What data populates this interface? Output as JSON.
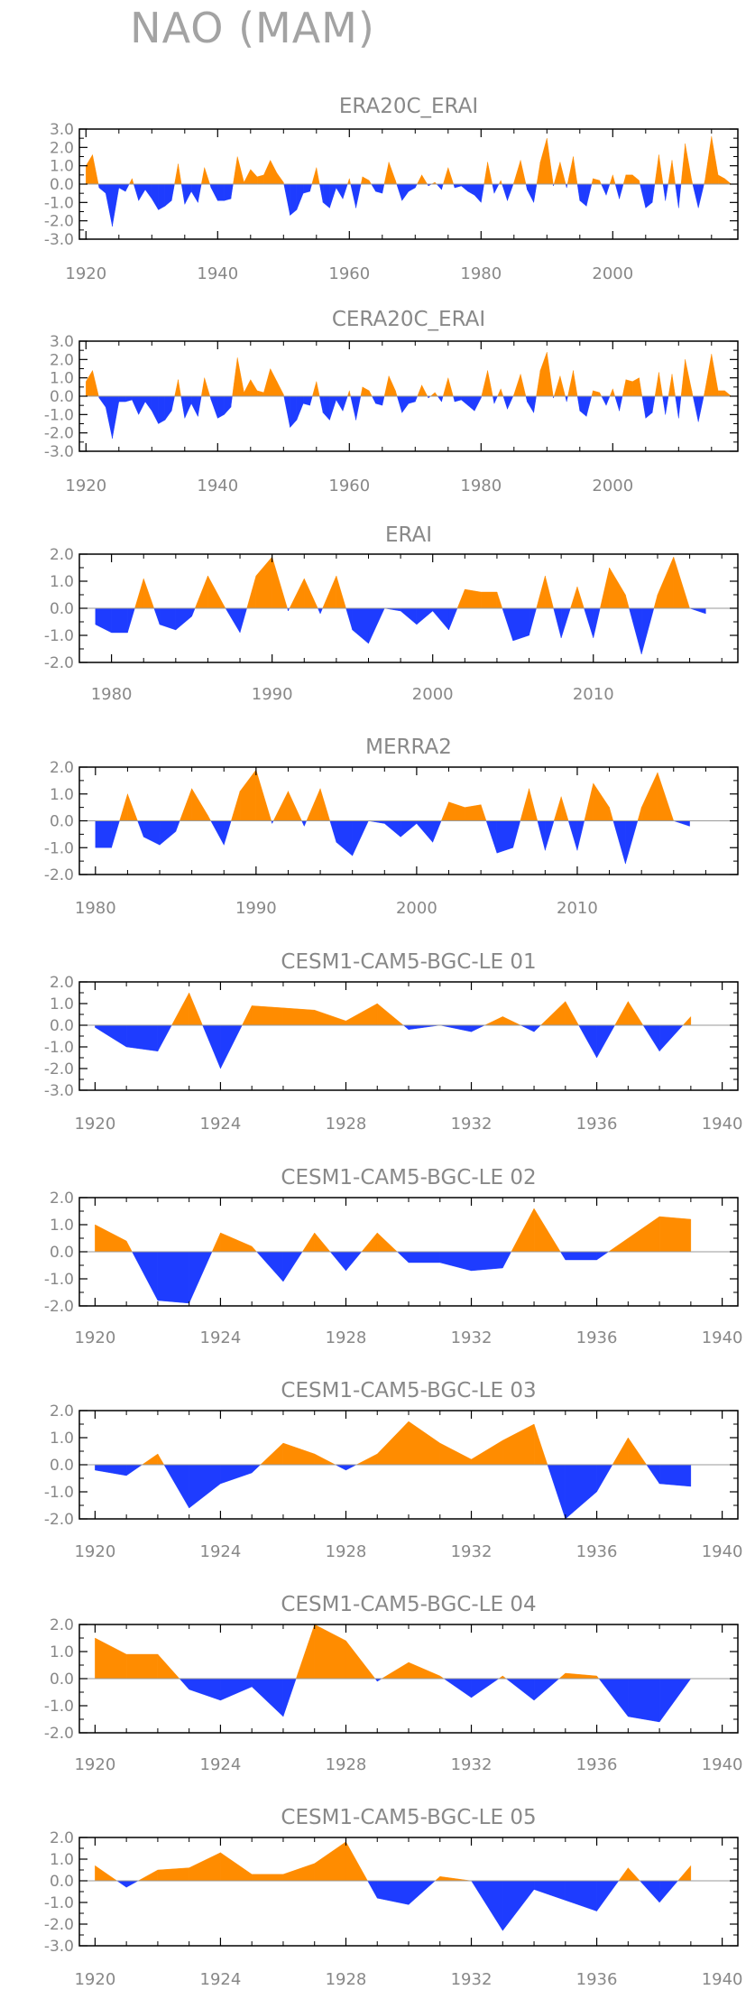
{
  "page_title": "NAO (MAM)",
  "colors": {
    "positive": "#ff8c00",
    "negative": "#1e3cff",
    "axis": "#000000",
    "label": "#888888"
  },
  "chart_data": [
    {
      "type": "area",
      "title": "ERA20C_ERAI",
      "xlim": [
        1919,
        2019
      ],
      "ylim": [
        -3,
        3
      ],
      "yticks": [
        3.0,
        2.0,
        1.0,
        0.0,
        -1.0,
        -2.0,
        -3.0
      ],
      "ytick_labels": [
        "3.0",
        "2.0",
        "1.0",
        "0.0",
        "-1.0",
        "-2.0",
        "-3.0"
      ],
      "xticks": [
        1920,
        1940,
        1960,
        1980,
        2000
      ],
      "xtick_labels": [
        "1920",
        "1940",
        "1960",
        "1980",
        "2000"
      ],
      "x": [
        1920,
        1921,
        1922,
        1923,
        1924,
        1925,
        1926,
        1927,
        1928,
        1929,
        1930,
        1931,
        1932,
        1933,
        1934,
        1935,
        1936,
        1937,
        1938,
        1939,
        1940,
        1941,
        1942,
        1943,
        1944,
        1945,
        1946,
        1947,
        1948,
        1949,
        1950,
        1951,
        1952,
        1953,
        1954,
        1955,
        1956,
        1957,
        1958,
        1959,
        1960,
        1961,
        1962,
        1963,
        1964,
        1965,
        1966,
        1967,
        1968,
        1969,
        1970,
        1971,
        1972,
        1973,
        1974,
        1975,
        1976,
        1977,
        1978,
        1979,
        1980,
        1981,
        1982,
        1983,
        1984,
        1985,
        1986,
        1987,
        1988,
        1989,
        1990,
        1991,
        1992,
        1993,
        1994,
        1995,
        1996,
        1997,
        1998,
        1999,
        2000,
        2001,
        2002,
        2003,
        2004,
        2005,
        2006,
        2007,
        2008,
        2009,
        2010,
        2011,
        2012,
        2013,
        2014,
        2015,
        2016,
        2017,
        2018
      ],
      "values": [
        1.0,
        1.6,
        -0.2,
        -0.5,
        -2.3,
        -0.2,
        -0.4,
        0.3,
        -0.9,
        -0.3,
        -0.8,
        -1.4,
        -1.2,
        -0.9,
        1.1,
        -1.1,
        -0.4,
        -1.0,
        0.9,
        -0.2,
        -0.9,
        -0.9,
        -0.8,
        1.5,
        0.1,
        0.8,
        0.4,
        0.5,
        1.3,
        0.6,
        0.1,
        -1.7,
        -1.4,
        -0.5,
        -0.4,
        0.9,
        -1.0,
        -1.3,
        -0.2,
        -0.8,
        0.3,
        -1.3,
        0.4,
        0.2,
        -0.4,
        -0.5,
        1.2,
        0.2,
        -0.9,
        -0.4,
        -0.2,
        0.5,
        -0.1,
        0.1,
        -0.3,
        0.9,
        -0.2,
        -0.1,
        -0.4,
        -0.6,
        -1.0,
        1.2,
        -0.5,
        0.2,
        -0.9,
        0.1,
        1.3,
        -0.3,
        -1.0,
        1.2,
        2.5,
        -0.1,
        1.2,
        -0.2,
        1.5,
        -0.9,
        -1.2,
        0.3,
        0.2,
        -0.6,
        0.5,
        -0.8,
        0.5,
        0.5,
        0.2,
        -1.3,
        -1.0,
        1.6,
        -0.9,
        1.3,
        -1.3,
        2.2,
        0.2,
        -1.3,
        0.2,
        2.6,
        0.5,
        0.3,
        0.0
      ]
    },
    {
      "type": "area",
      "title": "CERA20C_ERAI",
      "xlim": [
        1919,
        2019
      ],
      "ylim": [
        -3,
        3
      ],
      "yticks": [
        3.0,
        2.0,
        1.0,
        0.0,
        -1.0,
        -2.0,
        -3.0
      ],
      "ytick_labels": [
        "3.0",
        "2.0",
        "1.0",
        "0.0",
        "-1.0",
        "-2.0",
        "-3.0"
      ],
      "xticks": [
        1920,
        1940,
        1960,
        1980,
        2000
      ],
      "xtick_labels": [
        "1920",
        "1940",
        "1960",
        "1980",
        "2000"
      ],
      "x": [
        1920,
        1921,
        1922,
        1923,
        1924,
        1925,
        1926,
        1927,
        1928,
        1929,
        1930,
        1931,
        1932,
        1933,
        1934,
        1935,
        1936,
        1937,
        1938,
        1939,
        1940,
        1941,
        1942,
        1943,
        1944,
        1945,
        1946,
        1947,
        1948,
        1949,
        1950,
        1951,
        1952,
        1953,
        1954,
        1955,
        1956,
        1957,
        1958,
        1959,
        1960,
        1961,
        1962,
        1963,
        1964,
        1965,
        1966,
        1967,
        1968,
        1969,
        1970,
        1971,
        1972,
        1973,
        1974,
        1975,
        1976,
        1977,
        1978,
        1979,
        1980,
        1981,
        1982,
        1983,
        1984,
        1985,
        1986,
        1987,
        1988,
        1989,
        1990,
        1991,
        1992,
        1993,
        1994,
        1995,
        1996,
        1997,
        1998,
        1999,
        2000,
        2001,
        2002,
        2003,
        2004,
        2005,
        2006,
        2007,
        2008,
        2009,
        2010,
        2011,
        2012,
        2013,
        2014,
        2015,
        2016,
        2017,
        2018
      ],
      "values": [
        0.8,
        1.4,
        -0.1,
        -0.6,
        -2.3,
        -0.3,
        -0.3,
        -0.2,
        -1.0,
        -0.3,
        -0.8,
        -1.5,
        -1.3,
        -0.8,
        0.9,
        -1.2,
        -0.4,
        -1.1,
        1.0,
        -0.2,
        -1.2,
        -1.0,
        -0.6,
        2.1,
        0.2,
        0.9,
        0.3,
        0.2,
        1.5,
        0.8,
        0.1,
        -1.7,
        -1.3,
        -0.4,
        -0.5,
        0.8,
        -0.9,
        -1.3,
        -0.2,
        -0.8,
        0.3,
        -1.3,
        0.5,
        0.3,
        -0.4,
        -0.5,
        1.1,
        0.3,
        -0.9,
        -0.4,
        -0.3,
        0.6,
        -0.1,
        0.2,
        -0.3,
        1.0,
        -0.3,
        -0.2,
        -0.5,
        -0.8,
        -0.1,
        1.4,
        -0.4,
        0.4,
        -0.7,
        0.1,
        1.2,
        -0.3,
        -0.9,
        1.4,
        2.4,
        -0.1,
        1.1,
        -0.3,
        1.4,
        -0.8,
        -1.1,
        0.3,
        0.2,
        -0.5,
        0.4,
        -0.8,
        0.9,
        0.8,
        1.0,
        -1.2,
        -0.9,
        1.3,
        -1.0,
        1.2,
        -1.2,
        2.0,
        0.3,
        -1.4,
        0.3,
        2.3,
        0.3,
        0.3,
        0.0
      ]
    },
    {
      "type": "area",
      "title": "ERAI",
      "xlim": [
        1978,
        2019
      ],
      "ylim": [
        -2,
        2
      ],
      "yticks": [
        2.0,
        1.0,
        0.0,
        -1.0,
        -2.0
      ],
      "ytick_labels": [
        "2.0",
        "1.0",
        "0.0",
        "-1.0",
        "-2.0"
      ],
      "xticks": [
        1980,
        1990,
        2000,
        2010
      ],
      "xtick_labels": [
        "1980",
        "1990",
        "2000",
        "2010"
      ],
      "x": [
        1979,
        1980,
        1981,
        1982,
        1983,
        1984,
        1985,
        1986,
        1987,
        1988,
        1989,
        1990,
        1991,
        1992,
        1993,
        1994,
        1995,
        1996,
        1997,
        1998,
        1999,
        2000,
        2001,
        2002,
        2003,
        2004,
        2005,
        2006,
        2007,
        2008,
        2009,
        2010,
        2011,
        2012,
        2013,
        2014,
        2015,
        2016,
        2017
      ],
      "values": [
        -0.6,
        -0.9,
        -0.9,
        1.1,
        -0.6,
        -0.8,
        -0.3,
        1.2,
        0.1,
        -0.9,
        1.2,
        1.9,
        -0.1,
        1.1,
        -0.2,
        1.2,
        -0.8,
        -1.3,
        -0.0,
        -0.1,
        -0.6,
        -0.1,
        -0.8,
        0.7,
        0.6,
        0.6,
        -1.2,
        -1.0,
        1.2,
        -1.1,
        0.8,
        -1.1,
        1.5,
        0.5,
        -1.7,
        0.5,
        1.9,
        0.0,
        -0.2
      ]
    },
    {
      "type": "area",
      "title": "MERRA2",
      "xlim": [
        1979,
        2020
      ],
      "ylim": [
        -2,
        2
      ],
      "yticks": [
        2.0,
        1.0,
        0.0,
        -1.0,
        -2.0
      ],
      "ytick_labels": [
        "2.0",
        "1.0",
        "0.0",
        "-1.0",
        "-2.0"
      ],
      "xticks": [
        1980,
        1990,
        2000,
        2010
      ],
      "xtick_labels": [
        "1980",
        "1990",
        "2000",
        "2010"
      ],
      "x": [
        1980,
        1981,
        1982,
        1983,
        1984,
        1985,
        1986,
        1987,
        1988,
        1989,
        1990,
        1991,
        1992,
        1993,
        1994,
        1995,
        1996,
        1997,
        1998,
        1999,
        2000,
        2001,
        2002,
        2003,
        2004,
        2005,
        2006,
        2007,
        2008,
        2009,
        2010,
        2011,
        2012,
        2013,
        2014,
        2015,
        2016,
        2017
      ],
      "values": [
        -1.0,
        -1.0,
        1.0,
        -0.6,
        -0.9,
        -0.4,
        1.2,
        0.2,
        -0.9,
        1.1,
        1.9,
        -0.1,
        1.1,
        -0.2,
        1.2,
        -0.8,
        -1.3,
        -0.0,
        -0.1,
        -0.6,
        -0.1,
        -0.8,
        0.7,
        0.5,
        0.6,
        -1.2,
        -1.0,
        1.2,
        -1.1,
        0.9,
        -1.1,
        1.4,
        0.5,
        -1.6,
        0.5,
        1.8,
        0.0,
        -0.2
      ]
    },
    {
      "type": "area",
      "title": "CESM1-CAM5-BGC-LE 01",
      "xlim": [
        1919.5,
        1940.5
      ],
      "ylim": [
        -3,
        2
      ],
      "yticks": [
        2.0,
        1.0,
        0.0,
        -1.0,
        -2.0,
        -3.0
      ],
      "ytick_labels": [
        "2.0",
        "1.0",
        "0.0",
        "-1.0",
        "-2.0",
        "-3.0"
      ],
      "xticks": [
        1920,
        1924,
        1928,
        1932,
        1936,
        1940
      ],
      "xtick_labels": [
        "1920",
        "1924",
        "1928",
        "1932",
        "1936",
        "1940"
      ],
      "x": [
        1920,
        1921,
        1922,
        1923,
        1924,
        1925,
        1926,
        1927,
        1928,
        1929,
        1930,
        1931,
        1932,
        1933,
        1934,
        1935,
        1936,
        1937,
        1938,
        1939
      ],
      "values": [
        -0.1,
        -1.0,
        -1.2,
        1.5,
        -2.0,
        0.9,
        0.8,
        0.7,
        0.2,
        1.0,
        -0.2,
        0.0,
        -0.3,
        0.4,
        -0.3,
        1.1,
        -1.5,
        1.1,
        -1.2,
        0.4
      ]
    },
    {
      "type": "area",
      "title": "CESM1-CAM5-BGC-LE 02",
      "xlim": [
        1919.5,
        1940.5
      ],
      "ylim": [
        -2,
        2
      ],
      "yticks": [
        2.0,
        1.0,
        0.0,
        -1.0,
        -2.0
      ],
      "ytick_labels": [
        "2.0",
        "1.0",
        "0.0",
        "-1.0",
        "-2.0"
      ],
      "xticks": [
        1920,
        1924,
        1928,
        1932,
        1936,
        1940
      ],
      "xtick_labels": [
        "1920",
        "1924",
        "1928",
        "1932",
        "1936",
        "1940"
      ],
      "x": [
        1920,
        1921,
        1922,
        1923,
        1924,
        1925,
        1926,
        1927,
        1928,
        1929,
        1930,
        1931,
        1932,
        1933,
        1934,
        1935,
        1936,
        1937,
        1938,
        1939
      ],
      "values": [
        1.0,
        0.4,
        -1.8,
        -1.9,
        0.7,
        0.2,
        -1.1,
        0.7,
        -0.7,
        0.7,
        -0.4,
        -0.4,
        -0.7,
        -0.6,
        1.6,
        -0.3,
        -0.3,
        0.5,
        1.3,
        1.2
      ]
    },
    {
      "type": "area",
      "title": "CESM1-CAM5-BGC-LE 03",
      "xlim": [
        1919.5,
        1940.5
      ],
      "ylim": [
        -2,
        2
      ],
      "yticks": [
        2.0,
        1.0,
        0.0,
        -1.0,
        -2.0
      ],
      "ytick_labels": [
        "2.0",
        "1.0",
        "0.0",
        "-1.0",
        "-2.0"
      ],
      "xticks": [
        1920,
        1924,
        1928,
        1932,
        1936,
        1940
      ],
      "xtick_labels": [
        "1920",
        "1924",
        "1928",
        "1932",
        "1936",
        "1940"
      ],
      "x": [
        1920,
        1921,
        1922,
        1923,
        1924,
        1925,
        1926,
        1927,
        1928,
        1929,
        1930,
        1931,
        1932,
        1933,
        1934,
        1935,
        1936,
        1937,
        1938,
        1939
      ],
      "values": [
        -0.2,
        -0.4,
        0.4,
        -1.6,
        -0.7,
        -0.3,
        0.8,
        0.4,
        -0.2,
        0.4,
        1.6,
        0.8,
        0.2,
        0.9,
        1.5,
        -2.0,
        -1.0,
        1.0,
        -0.7,
        -0.8
      ]
    },
    {
      "type": "area",
      "title": "CESM1-CAM5-BGC-LE 04",
      "xlim": [
        1919.5,
        1940.5
      ],
      "ylim": [
        -2,
        2
      ],
      "yticks": [
        2.0,
        1.0,
        0.0,
        -1.0,
        -2.0
      ],
      "ytick_labels": [
        "2.0",
        "1.0",
        "0.0",
        "-1.0",
        "-2.0"
      ],
      "xticks": [
        1920,
        1924,
        1928,
        1932,
        1936,
        1940
      ],
      "xtick_labels": [
        "1920",
        "1924",
        "1928",
        "1932",
        "1936",
        "1940"
      ],
      "x": [
        1920,
        1921,
        1922,
        1923,
        1924,
        1925,
        1926,
        1927,
        1928,
        1929,
        1930,
        1931,
        1932,
        1933,
        1934,
        1935,
        1936,
        1937,
        1938,
        1939
      ],
      "values": [
        1.5,
        0.9,
        0.9,
        -0.4,
        -0.8,
        -0.3,
        -1.4,
        2.0,
        1.4,
        -0.1,
        0.6,
        0.1,
        -0.7,
        0.1,
        -0.8,
        0.2,
        0.1,
        -1.4,
        -1.6,
        0.0
      ]
    },
    {
      "type": "area",
      "title": "CESM1-CAM5-BGC-LE 05",
      "xlim": [
        1919.5,
        1940.5
      ],
      "ylim": [
        -3,
        2
      ],
      "yticks": [
        2.0,
        1.0,
        0.0,
        -1.0,
        -2.0,
        -3.0
      ],
      "ytick_labels": [
        "2.0",
        "1.0",
        "0.0",
        "-1.0",
        "-2.0",
        "-3.0"
      ],
      "xticks": [
        1920,
        1924,
        1928,
        1932,
        1936,
        1940
      ],
      "xtick_labels": [
        "1920",
        "1924",
        "1928",
        "1932",
        "1936",
        "1940"
      ],
      "x": [
        1920,
        1921,
        1922,
        1923,
        1924,
        1925,
        1926,
        1927,
        1928,
        1929,
        1930,
        1931,
        1932,
        1933,
        1934,
        1935,
        1936,
        1937,
        1938,
        1939
      ],
      "values": [
        0.7,
        -0.3,
        0.5,
        0.6,
        1.3,
        0.3,
        0.3,
        0.8,
        1.8,
        -0.8,
        -1.1,
        0.2,
        0.0,
        -2.3,
        -0.4,
        -0.9,
        -1.4,
        0.6,
        -1.0,
        0.7
      ]
    }
  ]
}
